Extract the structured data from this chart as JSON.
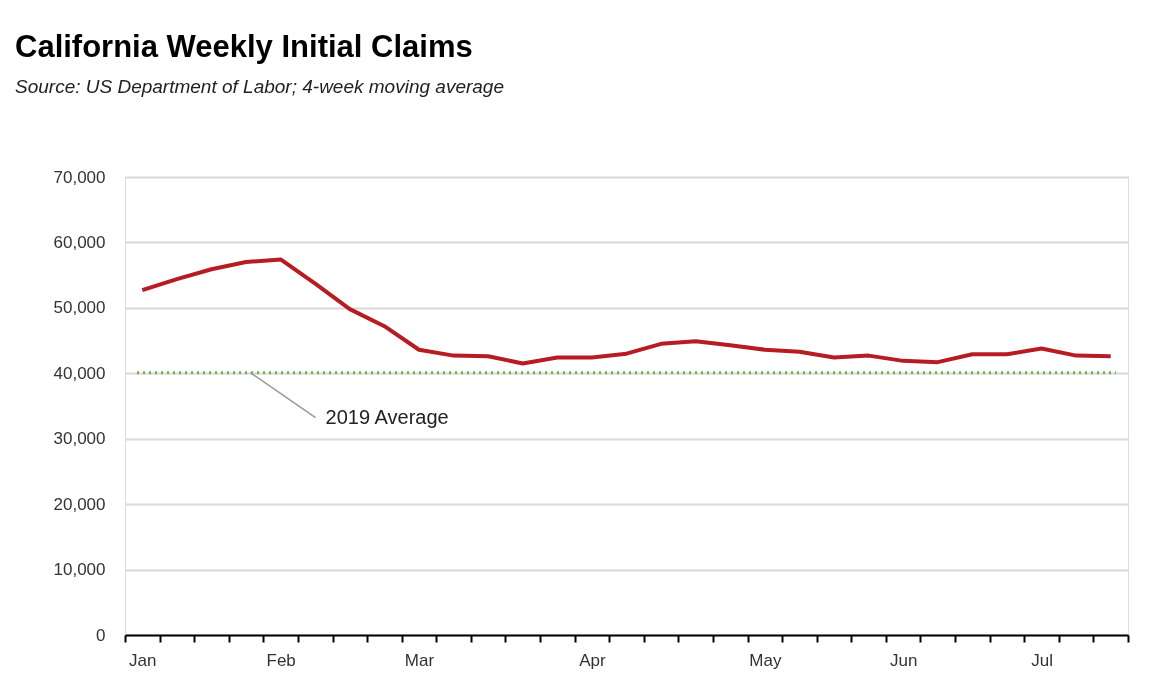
{
  "chart_data": {
    "type": "line",
    "title": "California Weekly Initial Claims",
    "subtitle": "Source:  US Department of Labor; 4-week moving average",
    "categories": [
      "Jan",
      null,
      null,
      null,
      "Feb",
      null,
      null,
      null,
      "Mar",
      null,
      null,
      null,
      null,
      "Apr",
      null,
      null,
      null,
      null,
      "May",
      null,
      null,
      null,
      "Jun",
      null,
      null,
      null,
      "Jul",
      null,
      null
    ],
    "series": [
      {
        "color": "#b81c23",
        "values": [
          52700,
          54400,
          55900,
          57000,
          57400,
          53700,
          49800,
          47200,
          43600,
          42700,
          42600,
          41500,
          42400,
          42400,
          43000,
          44500,
          44900,
          44300,
          43600,
          43300,
          42400,
          42700,
          41900,
          41700,
          42900,
          42900,
          43800,
          42700,
          42600
        ]
      }
    ],
    "ylim": [
      0,
      70000
    ],
    "yticks": [
      {
        "value": 0,
        "label": "0"
      },
      {
        "value": 10000,
        "label": "10,000"
      },
      {
        "value": 20000,
        "label": "20,000"
      },
      {
        "value": 30000,
        "label": "30,000"
      },
      {
        "value": 40000,
        "label": "40,000"
      },
      {
        "value": 50000,
        "label": "50,000"
      },
      {
        "value": 60000,
        "label": "60,000"
      },
      {
        "value": 70000,
        "label": "70,000"
      }
    ],
    "grid": "y",
    "line_style": "solid",
    "ref_lines": [
      {
        "axis": "y",
        "value": 40100,
        "label": "2019 Average",
        "color": "#70ad47",
        "line_style": "dotted"
      }
    ]
  }
}
